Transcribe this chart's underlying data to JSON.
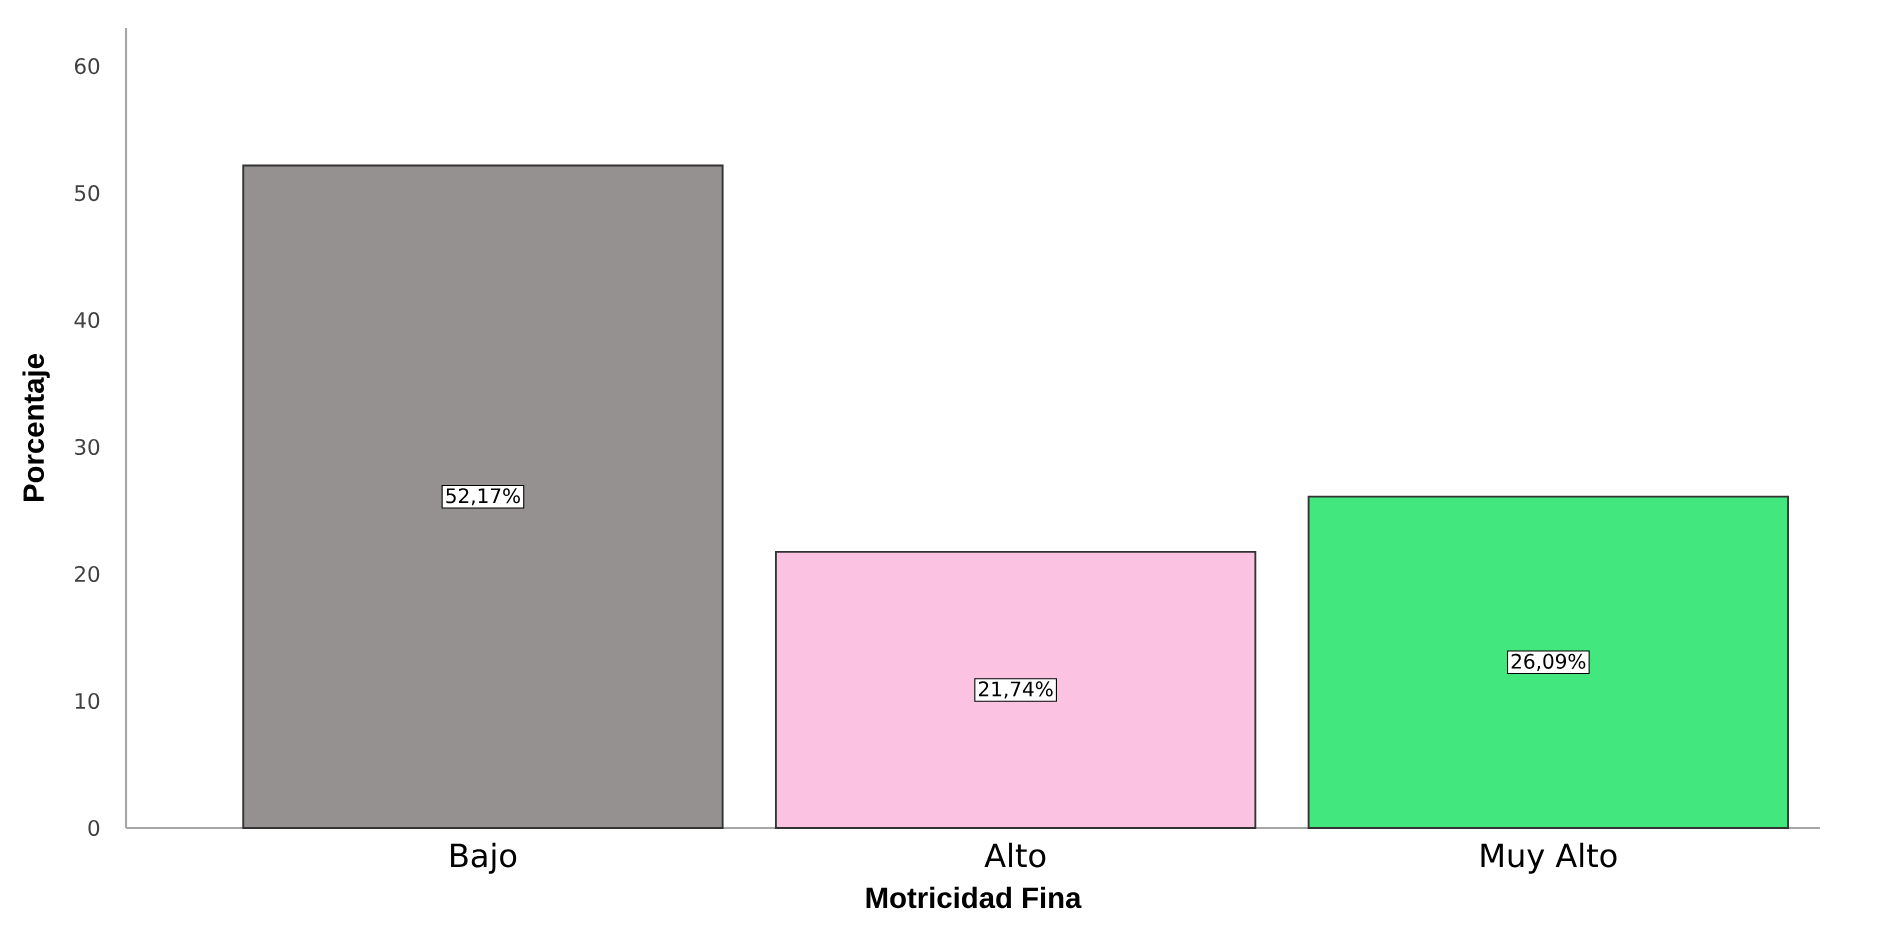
{
  "chart_data": {
    "type": "bar",
    "xlabel": "Motricidad Fina",
    "ylabel": "Porcentaje",
    "categories": [
      "Bajo",
      "Alto",
      "Muy Alto"
    ],
    "values": [
      52.17,
      21.74,
      26.09
    ],
    "colors": [
      "#959190",
      "#fcc2e2",
      "#42e87e"
    ],
    "value_labels": [
      "52,17%",
      "21,74%",
      "26,09%"
    ],
    "ylim": [
      0,
      63
    ],
    "yticks": [
      0,
      10,
      20,
      30,
      40,
      50,
      60
    ],
    "grid": false
  }
}
